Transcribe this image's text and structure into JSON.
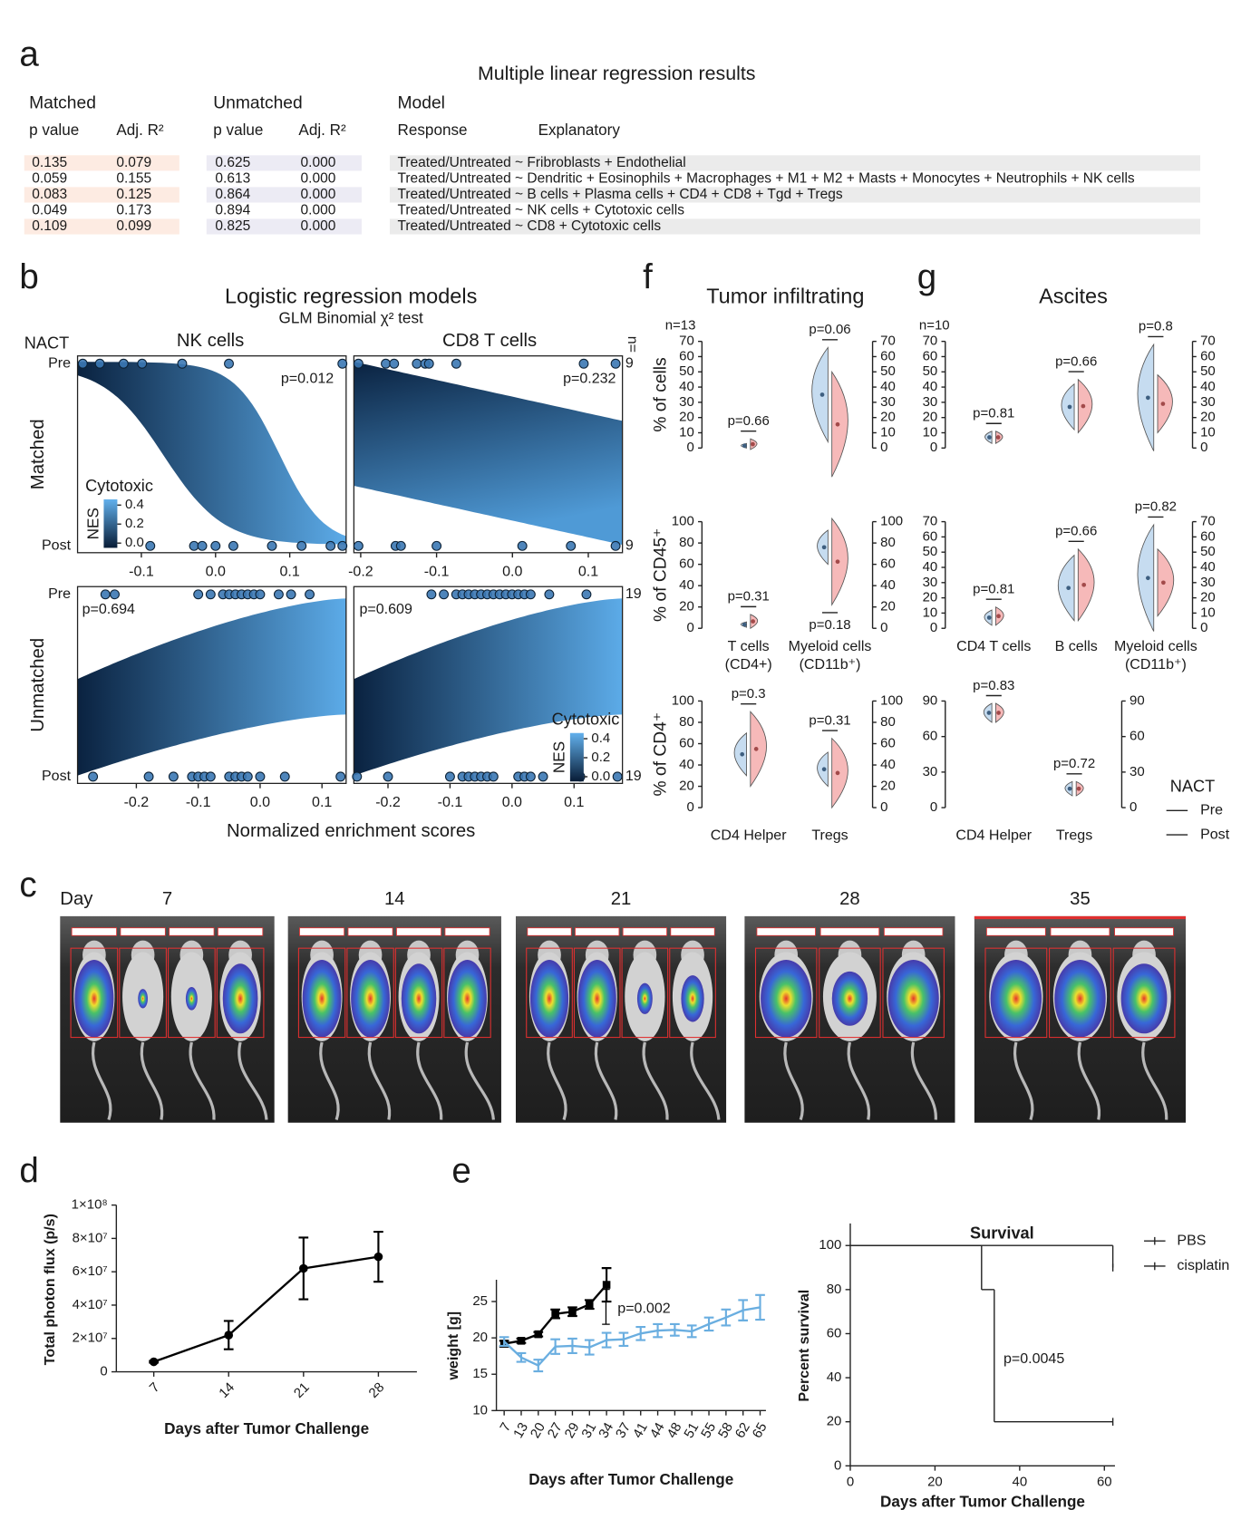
{
  "panel_labels": [
    "a",
    "b",
    "c",
    "d",
    "e",
    "f",
    "g"
  ],
  "table": {
    "title": "Multiple linear regression results",
    "groups": [
      "Matched",
      "Unmatched",
      "Model"
    ],
    "columns": [
      "p value",
      "Adj. R²",
      "p value",
      "Adj. R²",
      "Response",
      "Explanatory"
    ],
    "rows": [
      [
        "0.135",
        "0.079",
        "0.625",
        "0.000",
        "Treated/Untreated ~ Fribroblasts + Endothelial"
      ],
      [
        "0.059",
        "0.155",
        "0.613",
        "0.000",
        "Treated/Untreated ~ Dendritic + Eosinophils + Macrophages + M1 + M2 + Masts + Monocytes + Neutrophils + NK cells"
      ],
      [
        "0.083",
        "0.125",
        "0.864",
        "0.000",
        "Treated/Untreated ~ B cells + Plasma cells + CD4 + CD8 + Tgd + Tregs"
      ],
      [
        "0.049",
        "0.173",
        "0.894",
        "0.000",
        "Treated/Untreated ~ NK cells + Cytotoxic cells"
      ],
      [
        "0.109",
        "0.099",
        "0.825",
        "0.000",
        "Treated/Untreated ~ CD8 + Cytotoxic cells"
      ]
    ]
  },
  "logistic": {
    "title": "Logistic regression models",
    "subtitle": "GLM Binomial χ² test",
    "group_label": "NACT",
    "columns": [
      "NK cells",
      "CD8 T cells"
    ],
    "rows": [
      {
        "name": "Matched",
        "n": [
          9,
          9
        ]
      },
      {
        "name": "Unmatched",
        "n": [
          19,
          19
        ]
      }
    ],
    "levels": [
      "Pre",
      "Post"
    ],
    "n_label": "n=",
    "x_label": "Normalized enrichment scores",
    "point_color": "#3b78b4",
    "colorbar": {
      "title": "Cytotoxic",
      "label": "NES",
      "lim": [
        -0.05,
        0.46
      ],
      "ticks": [
        0.4,
        0.2,
        {
          "value": 0,
          "label": "0.0"
        }
      ]
    },
    "panels": [
      {
        "p": "p=0.012",
        "xlim": [
          -0.186,
          0.176
        ],
        "xticks": [
          -0.1,
          {
            "value": 0,
            "label": "0.0"
          },
          0.1
        ],
        "pre": [
          -0.179,
          -0.156,
          -0.124,
          -0.099,
          -0.045,
          0.018,
          0.171
        ],
        "post": [
          -0.088,
          -0.029,
          -0.018,
          0,
          0.024,
          0.076,
          0.116,
          0.155,
          0.171
        ]
      },
      {
        "p": "p=0.232",
        "xlim": [
          -0.209,
          0.145
        ],
        "xticks": [
          -0.2,
          -0.1,
          {
            "value": 0,
            "label": "0.0"
          },
          0.1
        ],
        "pre": [
          -0.203,
          -0.167,
          -0.156,
          -0.126,
          -0.115,
          -0.11,
          -0.074,
          0.094,
          0.136
        ],
        "post": [
          -0.203,
          -0.154,
          -0.147,
          -0.1,
          0.013,
          0.077,
          0.136
        ]
      },
      {
        "p": "p=0.694",
        "xlim": [
          -0.295,
          0.139
        ],
        "xticks": [
          -0.2,
          -0.1,
          {
            "value": 0,
            "label": "0.0"
          },
          0.1
        ],
        "pre": [
          -0.25,
          -0.235,
          -0.1,
          -0.08,
          -0.06,
          -0.05,
          -0.04,
          -0.03,
          -0.02,
          -0.01,
          0,
          0.03,
          0.05,
          0.08
        ],
        "post": [
          -0.27,
          -0.18,
          -0.14,
          -0.11,
          -0.1,
          -0.09,
          -0.08,
          -0.05,
          -0.04,
          -0.03,
          -0.02,
          0,
          0.04,
          0.13
        ]
      },
      {
        "p": "p=0.609",
        "xlim": [
          -0.255,
          0.178
        ],
        "xticks": [
          -0.2,
          -0.1,
          {
            "value": 0,
            "label": "0.0"
          },
          0.1
        ],
        "pre": [
          -0.13,
          -0.11,
          -0.09,
          -0.08,
          -0.07,
          -0.06,
          -0.05,
          -0.04,
          -0.03,
          -0.02,
          -0.01,
          0,
          0.01,
          0.02,
          0.03,
          0.06,
          0.12
        ],
        "post": [
          -0.25,
          -0.2,
          -0.1,
          -0.08,
          -0.07,
          -0.06,
          -0.05,
          -0.04,
          -0.03,
          0.01,
          0.02,
          0.03,
          0.05,
          0.11,
          0.17
        ]
      }
    ]
  },
  "imaging": {
    "day_label": "Day",
    "days": [
      "7",
      "14",
      "21",
      "28",
      "35"
    ]
  },
  "violins": {
    "legend_title": "NACT",
    "legend": [
      {
        "name": "Pre",
        "color": "#7fb2dd"
      },
      {
        "name": "Post",
        "color": "#ea7d7d"
      }
    ],
    "panels": [
      {
        "title": "Tumor infiltrating",
        "n": "n=13",
        "rows": [
          {
            "ylabel": "% of cells",
            "axes": [
              {
                "ylim": [
                  0,
                  70
                ],
                "yticks": [
                  0,
                  10,
                  20,
                  30,
                  40,
                  50,
                  60,
                  70
                ]
              },
              {
                "ylim": [
                  0,
                  70
                ],
                "yticks": [
                  0,
                  10,
                  20,
                  30,
                  40,
                  50,
                  60,
                  70
                ]
              }
            ],
            "groups": [
              {
                "axis": 0,
                "pre": [
                  0,
                  3
                ],
                "post": [
                  -1,
                  6
                ],
                "p": "p=0.66"
              },
              {
                "axis": 1,
                "pre": [
                  4,
                  66
                ],
                "post": [
                  -19,
                  50
                ],
                "p": "p=0.06"
              }
            ]
          },
          {
            "ylabel": "% of CD45⁺",
            "axes": [
              {
                "ylim": [
                  0,
                  100
                ],
                "yticks": [
                  0,
                  20,
                  40,
                  60,
                  80,
                  100
                ]
              },
              {
                "ylim": [
                  0,
                  100
                ],
                "yticks": [
                  0,
                  20,
                  40,
                  60,
                  80,
                  100
                ]
              }
            ],
            "groups": [
              {
                "axis": 0,
                "pre": [
                  1,
                  6
                ],
                "post": [
                  0,
                  13
                ],
                "p": "p=0.31"
              },
              {
                "axis": 1,
                "pre": [
                  60,
                  92
                ],
                "post": [
                  22,
                  103
                ],
                "p": "p=0.18",
                "p_side": "bottom"
              }
            ],
            "labels": [
              [
                "T cells",
                "(CD4+)"
              ],
              [
                "Myeloid cells",
                "(CD11b⁺)"
              ]
            ]
          },
          {
            "ylabel": "% of CD4⁺",
            "axes": [
              {
                "ylim": [
                  0,
                  100
                ],
                "yticks": [
                  0,
                  20,
                  40,
                  60,
                  80,
                  100
                ]
              },
              {
                "ylim": [
                  0,
                  100
                ],
                "yticks": [
                  0,
                  20,
                  40,
                  60,
                  80,
                  100
                ]
              }
            ],
            "groups": [
              {
                "axis": 0,
                "pre": [
                  30,
                  70
                ],
                "post": [
                  20,
                  90
                ],
                "p": "p=0.3"
              },
              {
                "axis": 1,
                "pre": [
                  20,
                  52
                ],
                "post": [
                  0,
                  65
                ],
                "p": "p=0.31"
              }
            ],
            "labels": [
              [
                "CD4 Helper"
              ],
              [
                "Tregs"
              ]
            ]
          }
        ]
      },
      {
        "title": "Ascites",
        "n": "n=10",
        "rows": [
          {
            "axes": [
              {
                "ylim": [
                  0,
                  70
                ],
                "yticks": [
                  0,
                  10,
                  20,
                  30,
                  40,
                  50,
                  60,
                  70
                ]
              },
              {
                "ylim": [
                  0,
                  70
                ],
                "yticks": [
                  0,
                  10,
                  20,
                  30,
                  40,
                  50,
                  60,
                  70
                ]
              }
            ],
            "groups": [
              {
                "axis": 0,
                "pre": [
                  3,
                  11
                ],
                "post": [
                  3,
                  11
                ],
                "p": "p=0.81"
              },
              {
                "axis": 0,
                "pre": [
                  12,
                  42
                ],
                "post": [
                  10,
                  45
                ],
                "p": "p=0.66"
              },
              {
                "axis": 1,
                "pre": [
                  -2,
                  68
                ],
                "post": [
                  10,
                  48
                ],
                "p": "p=0.8"
              }
            ]
          },
          {
            "axes": [
              {
                "ylim": [
                  0,
                  70
                ],
                "yticks": [
                  0,
                  10,
                  20,
                  30,
                  40,
                  50,
                  60,
                  70
                ]
              },
              {
                "ylim": [
                  0,
                  70
                ],
                "yticks": [
                  0,
                  10,
                  20,
                  30,
                  40,
                  50,
                  60,
                  70
                ]
              }
            ],
            "groups": [
              {
                "axis": 0,
                "pre": [
                  2,
                  12
                ],
                "post": [
                  2,
                  14
                ],
                "p": "p=0.81"
              },
              {
                "axis": 0,
                "pre": [
                  5,
                  48
                ],
                "post": [
                  5,
                  52
                ],
                "p": "p=0.66"
              },
              {
                "axis": 1,
                "pre": [
                  -2,
                  68
                ],
                "post": [
                  8,
                  52
                ],
                "p": "p=0.82"
              }
            ],
            "labels": [
              [
                "CD4 T cells"
              ],
              [
                "B cells"
              ],
              [
                "Myeloid cells",
                "(CD11b⁺)"
              ]
            ]
          },
          {
            "axes": [
              {
                "ylim": [
                  0,
                  90
                ],
                "yticks": [
                  0,
                  30,
                  60,
                  90
                ]
              },
              {
                "ylim": [
                  0,
                  90
                ],
                "yticks": [
                  0,
                  30,
                  60,
                  90
                ]
              }
            ],
            "groups": [
              {
                "axis": 0,
                "pre": [
                  72,
                  88
                ],
                "post": [
                  72,
                  88
                ],
                "p": "p=0.83"
              },
              {
                "axis": 1,
                "pre": [
                  10,
                  22
                ],
                "post": [
                  10,
                  22
                ],
                "p": "p=0.72"
              }
            ],
            "labels": [
              [
                "CD4 Helper"
              ],
              [
                "Tregs"
              ]
            ]
          }
        ]
      }
    ]
  },
  "chart_data": [
    {
      "type": "line",
      "x": [
        7,
        14,
        21,
        28
      ],
      "values": [
        6000000,
        22000000,
        62000000,
        69000000
      ],
      "errors": [
        500000,
        8500000,
        18500000,
        15000000
      ],
      "color": "#000000",
      "marker": "circle",
      "xlim": [
        3.5,
        31.6
      ],
      "xticks": [
        7,
        14,
        21,
        28
      ],
      "ylim": [
        0,
        100000000
      ],
      "yticks": [
        0,
        {
          "value": 20000000,
          "label": "2×10⁷"
        },
        {
          "value": 40000000,
          "label": "4×10⁷"
        },
        {
          "value": 60000000,
          "label": "6×10⁷"
        },
        {
          "value": 80000000,
          "label": "8×10⁷"
        },
        {
          "value": 100000000,
          "label": "1×10⁸"
        }
      ],
      "y_label": "Total  photon flux (p/s)",
      "x_label": "Days after Tumor Challenge"
    },
    {
      "type": "line",
      "categories": [
        "7",
        "13",
        "20",
        "27",
        "29",
        "31",
        "34",
        "37",
        "41",
        "44",
        "48",
        "51",
        "55",
        "58",
        "62",
        "65"
      ],
      "series": [
        {
          "color": "#000000",
          "marker": "square",
          "values": [
            19.2,
            19.6,
            20.5,
            23.3,
            23.6,
            24.6,
            27.3,
            null,
            null,
            null,
            null,
            null,
            null,
            null,
            null,
            null
          ],
          "errors": [
            0.4,
            0.3,
            0.3,
            0.6,
            0.6,
            0.6,
            2.3,
            null,
            null,
            null,
            null,
            null,
            null,
            null,
            null,
            null
          ]
        },
        {
          "color": "#6aaee0",
          "marker": "none",
          "values": [
            19.5,
            17.3,
            16.2,
            18.8,
            18.9,
            18.7,
            19.7,
            19.8,
            20.6,
            21,
            21.1,
            20.9,
            21.9,
            22.8,
            23.8,
            24.2
          ],
          "errors": [
            0.6,
            0.6,
            0.8,
            1,
            1,
            1,
            1,
            0.9,
            0.9,
            0.9,
            0.8,
            0.8,
            0.9,
            1.1,
            1.4,
            1.7
          ]
        }
      ],
      "ylim": [
        10,
        28
      ],
      "yticks": [
        10,
        15,
        20,
        25
      ],
      "y_label": "weight [g]",
      "x_label": "Days after Tumor Challenge",
      "annotation": "p=0.002"
    },
    {
      "type": "step",
      "title": "Survival",
      "series": [
        {
          "name": "PBS",
          "color": "#000000",
          "x": [
            0,
            31,
            34,
            62
          ],
          "values": [
            100,
            80,
            20,
            20
          ]
        },
        {
          "name": "cisplatin",
          "color": "#6aaee0",
          "x": [
            0,
            62
          ],
          "values": [
            100,
            90
          ]
        }
      ],
      "xlim": [
        0,
        62.5
      ],
      "xticks": [
        0,
        20,
        40,
        60
      ],
      "ylim": [
        0,
        110
      ],
      "yticks": [
        0,
        20,
        40,
        60,
        80,
        100
      ],
      "y_label": "Percent survival",
      "x_label": "Days after Tumor Challenge",
      "annotation": "p=0.0045",
      "legend": "right"
    }
  ]
}
